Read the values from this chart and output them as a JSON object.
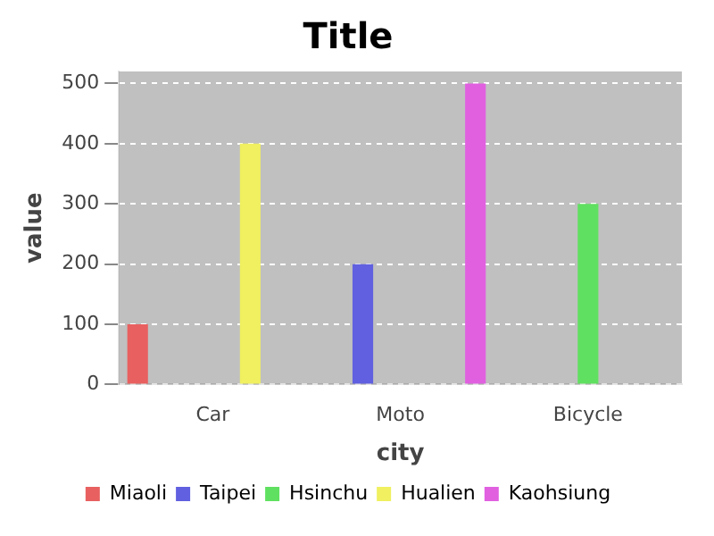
{
  "chart_data": {
    "type": "bar",
    "title": "Title",
    "xlabel": "city",
    "ylabel": "value",
    "categories": [
      "Car",
      "Moto",
      "Bicycle"
    ],
    "series": [
      {
        "name": "Miaoli",
        "color": "#e86060",
        "values": [
          100,
          null,
          null
        ]
      },
      {
        "name": "Taipei",
        "color": "#6060e0",
        "values": [
          null,
          200,
          null
        ]
      },
      {
        "name": "Hsinchu",
        "color": "#60e060",
        "values": [
          null,
          null,
          300
        ]
      },
      {
        "name": "Hualien",
        "color": "#f0f060",
        "values": [
          400,
          null,
          null
        ]
      },
      {
        "name": "Kaohsiung",
        "color": "#e060e0",
        "values": [
          null,
          500,
          null
        ]
      }
    ],
    "ylim": [
      0,
      520
    ],
    "yticks": [
      0,
      100,
      200,
      300,
      400,
      500
    ],
    "grid": "y",
    "legend": "bottom"
  }
}
